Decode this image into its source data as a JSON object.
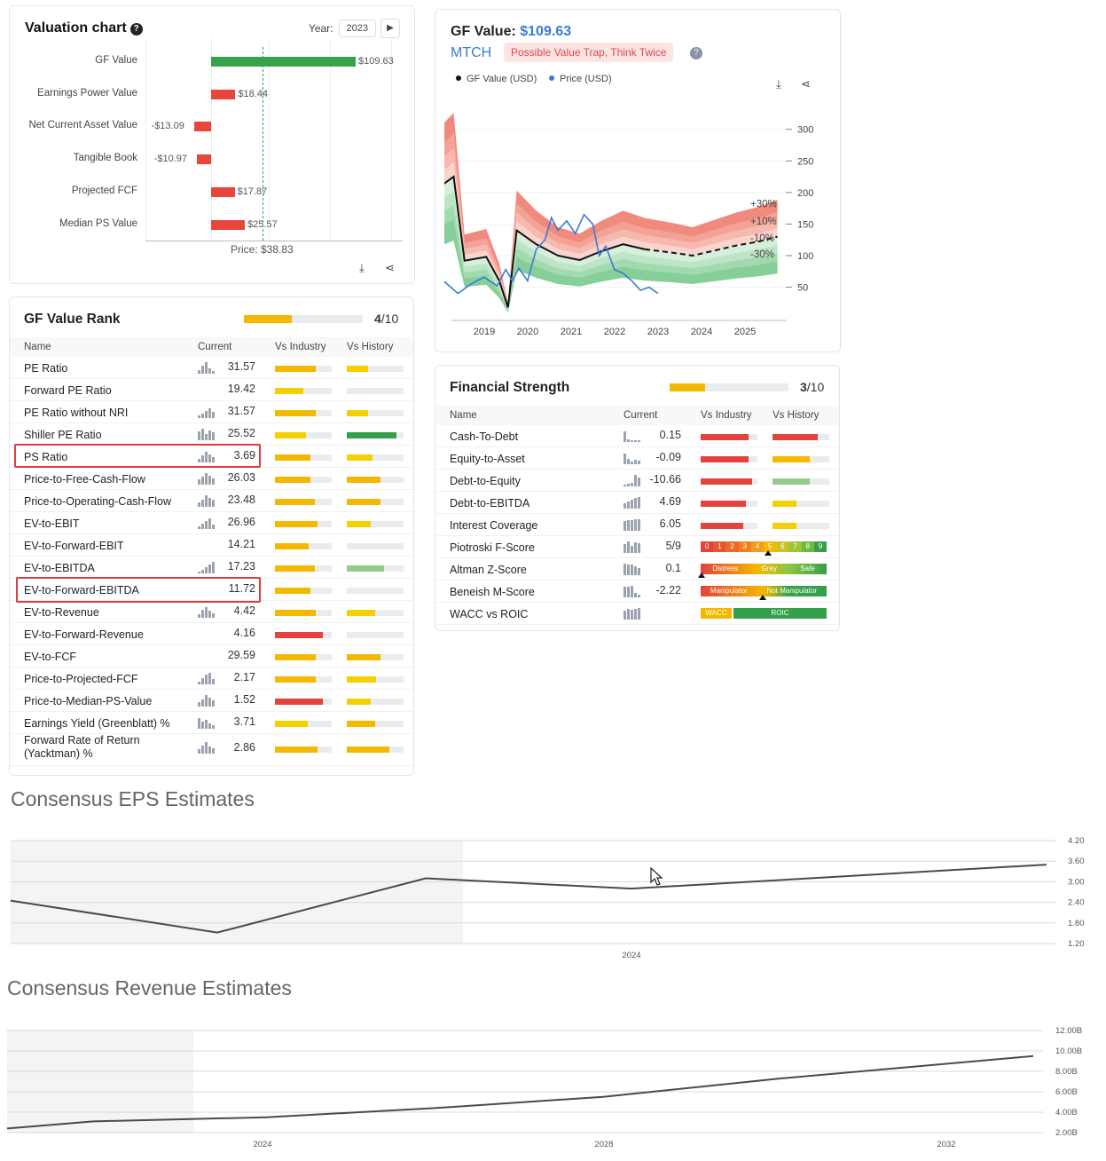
{
  "valuation": {
    "title": "Valuation chart",
    "help": "?",
    "year_label": "Year:",
    "year_value": "2023",
    "price_label": "Price: $38.83",
    "rows": [
      {
        "label": "GF Value",
        "value": 109.63,
        "text": "$109.63"
      },
      {
        "label": "Earnings Power Value",
        "value": 18.44,
        "text": "$18.44"
      },
      {
        "label": "Net Current Asset Value",
        "value": -13.09,
        "text": "-$13.09"
      },
      {
        "label": "Tangible Book",
        "value": -10.97,
        "text": "-$10.97"
      },
      {
        "label": "Projected FCF",
        "value": 17.87,
        "text": "$17.87"
      },
      {
        "label": "Median PS Value",
        "value": 25.57,
        "text": "$25.57"
      }
    ],
    "price": 38.83
  },
  "gfvalue": {
    "title_prefix": "GF Value:",
    "title_value": "$109.63",
    "ticker": "MTCH",
    "badge": "Possible Value Trap, Think Twice",
    "legend_gf": "GF Value (USD)",
    "legend_price": "Price (USD)",
    "y_ticks": [
      "300",
      "250",
      "200",
      "150",
      "100",
      "50"
    ],
    "x_ticks": [
      "2019",
      "2020",
      "2021",
      "2022",
      "2023",
      "2024",
      "2025"
    ],
    "band_labels": [
      "+30%",
      "+10%",
      "-10%",
      "-30%"
    ]
  },
  "rank": {
    "title": "GF Value Rank",
    "score": "4",
    "score_max": "/10",
    "score_fraction": 0.4,
    "headers": [
      "Name",
      "Current",
      "Vs Industry",
      "Vs History"
    ],
    "rows": [
      {
        "name": "PE Ratio",
        "current": "31.57",
        "ind": 0.72,
        "indc": "#f5b800",
        "his": 0.38,
        "hisc": "#f5d000",
        "spark": [
          4,
          9,
          13,
          6,
          3
        ]
      },
      {
        "name": "Forward PE Ratio",
        "current": "19.42",
        "ind": 0.5,
        "indc": "#f5d000",
        "his": 0,
        "hisc": "#e9ecef",
        "spark": []
      },
      {
        "name": "PE Ratio without NRI",
        "current": "31.57",
        "ind": 0.72,
        "indc": "#f5b800",
        "his": 0.38,
        "hisc": "#f5d000",
        "spark": [
          3,
          5,
          8,
          11,
          7
        ]
      },
      {
        "name": "Shiller PE Ratio",
        "current": "25.52",
        "ind": 0.55,
        "indc": "#f5d000",
        "his": 0.88,
        "hisc": "#34a04a",
        "spark": [
          10,
          13,
          7,
          11,
          9
        ]
      },
      {
        "name": "PS Ratio",
        "current": "3.69",
        "ind": 0.62,
        "indc": "#f5b800",
        "his": 0.45,
        "hisc": "#f5d000",
        "spark": [
          4,
          8,
          12,
          9,
          6
        ]
      },
      {
        "name": "Price-to-Free-Cash-Flow",
        "current": "26.03",
        "ind": 0.62,
        "indc": "#f5b800",
        "his": 0.6,
        "hisc": "#f5b800",
        "spark": [
          6,
          9,
          13,
          10,
          7
        ]
      },
      {
        "name": "Price-to-Operating-Cash-Flow",
        "current": "23.48",
        "ind": 0.7,
        "indc": "#f5b800",
        "his": 0.6,
        "hisc": "#f5b800",
        "spark": [
          5,
          8,
          13,
          10,
          8
        ]
      },
      {
        "name": "EV-to-EBIT",
        "current": "26.96",
        "ind": 0.75,
        "indc": "#f5b800",
        "his": 0.42,
        "hisc": "#f5d000",
        "spark": [
          3,
          6,
          9,
          12,
          5
        ]
      },
      {
        "name": "EV-to-Forward-EBIT",
        "current": "14.21",
        "ind": 0.6,
        "indc": "#f5b800",
        "his": 0,
        "hisc": "#e9ecef",
        "spark": []
      },
      {
        "name": "EV-to-EBITDA",
        "current": "17.23",
        "ind": 0.7,
        "indc": "#f5b800",
        "his": 0.65,
        "hisc": "#93cc8a",
        "spark": [
          2,
          4,
          7,
          10,
          13
        ]
      },
      {
        "name": "EV-to-Forward-EBITDA",
        "current": "11.72",
        "ind": 0.62,
        "indc": "#f5b800",
        "his": 0,
        "hisc": "#e9ecef",
        "spark": []
      },
      {
        "name": "EV-to-Revenue",
        "current": "4.42",
        "ind": 0.72,
        "indc": "#f5b800",
        "his": 0.5,
        "hisc": "#f5d000",
        "spark": [
          4,
          9,
          12,
          8,
          5
        ]
      },
      {
        "name": "EV-to-Forward-Revenue",
        "current": "4.16",
        "ind": 0.85,
        "indc": "#e2433b",
        "his": 0,
        "hisc": "#e9ecef",
        "spark": []
      },
      {
        "name": "EV-to-FCF",
        "current": "29.59",
        "ind": 0.72,
        "indc": "#f5b800",
        "his": 0.6,
        "hisc": "#f5b800",
        "spark": []
      },
      {
        "name": "Price-to-Projected-FCF",
        "current": "2.17",
        "ind": 0.72,
        "indc": "#f5b800",
        "his": 0.52,
        "hisc": "#f5d000",
        "spark": [
          3,
          7,
          11,
          13,
          6
        ]
      },
      {
        "name": "Price-to-Median-PS-Value",
        "current": "1.52",
        "ind": 0.85,
        "indc": "#e2433b",
        "his": 0.42,
        "hisc": "#f5d000",
        "spark": [
          5,
          8,
          13,
          10,
          7
        ]
      },
      {
        "name": "Earnings Yield (Greenblatt) %",
        "current": "3.71",
        "ind": 0.58,
        "indc": "#f5d000",
        "his": 0.5,
        "hisc": "#f5b800",
        "spark": [
          12,
          8,
          10,
          6,
          4
        ]
      },
      {
        "name": "Forward Rate of Return (Yacktman) %",
        "current": "2.86",
        "ind": 0.75,
        "indc": "#f5b800",
        "his": 0.75,
        "hisc": "#f5b800",
        "spark": [
          5,
          9,
          13,
          8,
          6
        ]
      }
    ]
  },
  "fin": {
    "title": "Financial Strength",
    "score": "3",
    "score_max": "/10",
    "score_fraction": 0.3,
    "headers": [
      "Name",
      "Current",
      "Vs Industry",
      "Vs History"
    ],
    "rows": [
      {
        "name": "Cash-To-Debt",
        "current": "0.15",
        "ind": 0.85,
        "indc": "#e2433b",
        "his": 0.8,
        "hisc": "#e2433b",
        "spark": [
          12,
          3,
          2,
          2,
          2
        ]
      },
      {
        "name": "Equity-to-Asset",
        "current": "-0.09",
        "ind": 0.85,
        "indc": "#e2433b",
        "his": 0.65,
        "hisc": "#f5b800",
        "spark": [
          12,
          6,
          3,
          5,
          4
        ]
      },
      {
        "name": "Debt-to-Equity",
        "current": "-10.66",
        "ind": 0.9,
        "indc": "#e2433b",
        "his": 0.65,
        "hisc": "#93cc8a",
        "spark": [
          2,
          3,
          4,
          13,
          10
        ]
      },
      {
        "name": "Debt-to-EBITDA",
        "current": "4.69",
        "ind": 0.8,
        "indc": "#e2433b",
        "his": 0.42,
        "hisc": "#f5d000",
        "spark": [
          6,
          8,
          10,
          12,
          13
        ]
      },
      {
        "name": "Interest Coverage",
        "current": "6.05",
        "ind": 0.75,
        "indc": "#e2433b",
        "his": 0.42,
        "hisc": "#f5d000",
        "spark": [
          11,
          12,
          12,
          13,
          13
        ]
      },
      {
        "name": "Piotroski F-Score",
        "current": "5/9",
        "type": "piotroski",
        "spark": [
          10,
          13,
          8,
          12,
          11
        ]
      },
      {
        "name": "Altman Z-Score",
        "current": "0.1",
        "type": "altman",
        "spark": [
          13,
          12,
          12,
          10,
          8
        ]
      },
      {
        "name": "Beneish M-Score",
        "current": "-2.22",
        "type": "beneish",
        "spark": [
          12,
          12,
          13,
          5,
          3
        ]
      },
      {
        "name": "WACC vs ROIC",
        "current": "",
        "type": "wacc",
        "spark": [
          10,
          12,
          11,
          12,
          13
        ]
      }
    ],
    "piotroski_digits": [
      "0",
      "1",
      "2",
      "3",
      "4",
      "5",
      "6",
      "7",
      "8",
      "9"
    ],
    "altman_labels": [
      "Distress",
      "Grey",
      "Safe"
    ],
    "beneish_labels": [
      "Manipulator",
      "Not Manipulator"
    ],
    "wacc_labels": [
      "WACC",
      "ROIC"
    ]
  },
  "eps": {
    "title": "Consensus EPS Estimates",
    "y_ticks": [
      "4.20",
      "3.60",
      "3.00",
      "2.40",
      "1.80",
      "1.20"
    ],
    "x_tick": "2024",
    "values": [
      2.45,
      1.52,
      3.1,
      2.8,
      3.5
    ]
  },
  "revenue": {
    "title": "Consensus Revenue Estimates",
    "y_ticks": [
      "12.00B",
      "10.00B",
      "8.00B",
      "6.00B",
      "4.00B",
      "2.00B"
    ],
    "x_ticks": [
      "2024",
      "2028",
      "2032"
    ],
    "values": [
      2.4,
      3.1,
      3.5,
      4.4,
      5.5,
      7.3,
      9.5
    ]
  }
}
